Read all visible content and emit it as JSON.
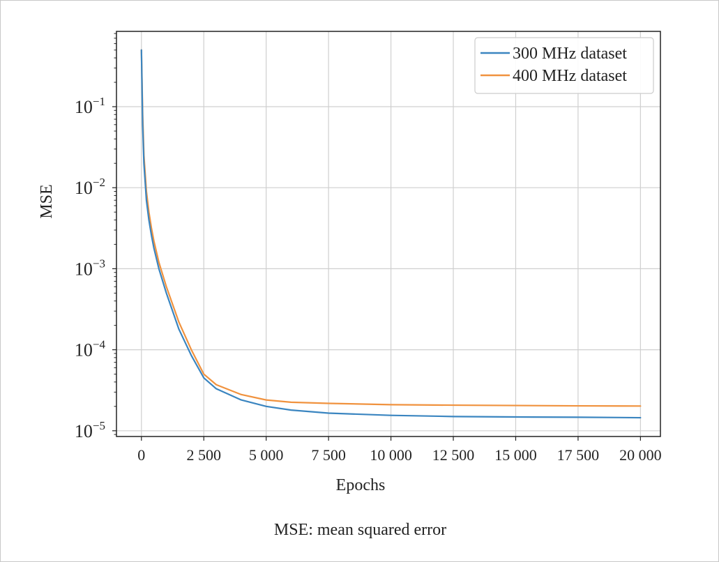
{
  "chart_data": {
    "type": "line",
    "title": "",
    "xlabel": "Epochs",
    "ylabel": "MSE",
    "xlim": [
      -1000,
      20800
    ],
    "ylim": [
      8.5e-06,
      0.85
    ],
    "yscale": "log",
    "grid": true,
    "legend_position": "top-right",
    "x_ticks": [
      0,
      2500,
      5000,
      7500,
      10000,
      12500,
      15000,
      17500,
      20000
    ],
    "x_tick_labels": [
      "0",
      "2 500",
      "5 000",
      "7 500",
      "10 000",
      "12 500",
      "15 000",
      "17 500",
      "20 000"
    ],
    "y_ticks": [
      1e-05,
      0.0001,
      0.001,
      0.01,
      0.1
    ],
    "y_tick_labels": [
      {
        "base": "10",
        "exp": "−5"
      },
      {
        "base": "10",
        "exp": "−4"
      },
      {
        "base": "10",
        "exp": "−3"
      },
      {
        "base": "10",
        "exp": "−2"
      },
      {
        "base": "10",
        "exp": "−1"
      }
    ],
    "series": [
      {
        "name": "300 MHz dataset",
        "color": "#3a85c0",
        "x": [
          0,
          50,
          100,
          200,
          300,
          400,
          500,
          700,
          1000,
          1500,
          2000,
          2500,
          3000,
          4000,
          5000,
          6000,
          7500,
          10000,
          12500,
          15000,
          17500,
          20000
        ],
        "y": [
          0.5,
          0.06,
          0.02,
          0.007,
          0.004,
          0.0026,
          0.0018,
          0.001,
          0.0005,
          0.00018,
          8.5e-05,
          4.5e-05,
          3.3e-05,
          2.4e-05,
          2e-05,
          1.8e-05,
          1.65e-05,
          1.55e-05,
          1.5e-05,
          1.48e-05,
          1.47e-05,
          1.45e-05
        ]
      },
      {
        "name": "400 MHz dataset",
        "color": "#f0923e",
        "x": [
          0,
          50,
          100,
          200,
          300,
          400,
          500,
          700,
          1000,
          1500,
          2000,
          2500,
          3000,
          4000,
          5000,
          6000,
          7500,
          10000,
          12500,
          15000,
          17500,
          20000
        ],
        "y": [
          0.5,
          0.08,
          0.025,
          0.009,
          0.005,
          0.0032,
          0.0022,
          0.0012,
          0.0006,
          0.00022,
          0.0001,
          5e-05,
          3.7e-05,
          2.8e-05,
          2.4e-05,
          2.25e-05,
          2.18e-05,
          2.1e-05,
          2.07e-05,
          2.05e-05,
          2.03e-05,
          2.02e-05
        ]
      }
    ]
  },
  "caption": "MSE: mean squared error"
}
